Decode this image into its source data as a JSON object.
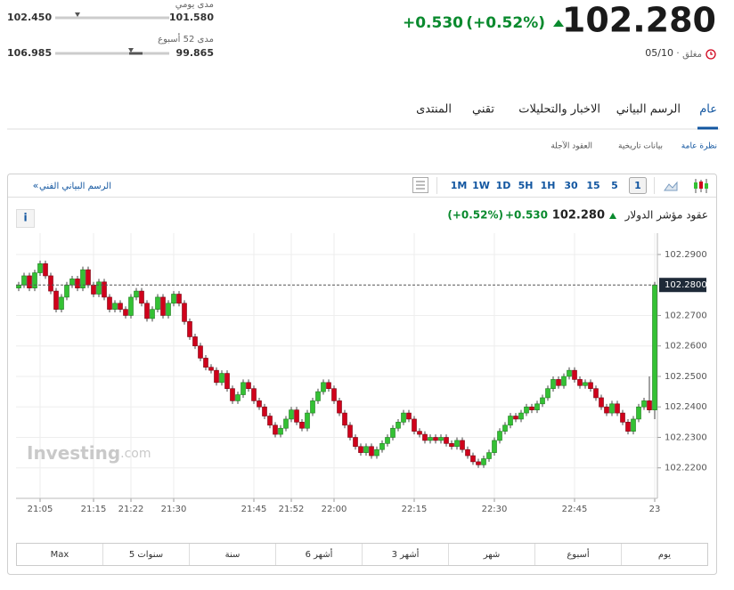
{
  "header": {
    "price": "102.280",
    "change": "+0.530",
    "change_pct": "(+0.52%)",
    "status": "مغلق",
    "date": "05/10",
    "daily_range": {
      "label": "مدى يومي",
      "left": "102.450",
      "right": "101.580"
    },
    "week52_range": {
      "label": "مدى 52 أسبوع",
      "left": "106.985",
      "right": "99.865"
    }
  },
  "tabs": [
    "عام",
    "الرسم البياني",
    "الاخبار والتحليلات",
    "تقني",
    "المنتدى"
  ],
  "subtabs": [
    "نظرة عامة",
    "بيانات تاريخية",
    "العقود الآجلة"
  ],
  "toolbar": {
    "link": "الرسم البياني الفني",
    "link_icon": "«",
    "intervals": [
      "1M",
      "1W",
      "1D",
      "5H",
      "1H",
      "30",
      "15",
      "5",
      "1"
    ]
  },
  "chart_header": {
    "name": "عقود مؤشر الدولار",
    "price": "102.280",
    "change": "+0.530",
    "change_pct": "(+0.52%)",
    "info": "i"
  },
  "watermark": {
    "brand": "Investing",
    "suffix": ".com"
  },
  "ranges": [
    "Max",
    "5 سنوات",
    "سنة",
    "6 أشهر",
    "3 أشهر",
    "شهر",
    "أسبوع",
    "يوم"
  ],
  "chart_data": {
    "type": "candlestick",
    "up_color": "#34c134",
    "down_color": "#d0021b",
    "grid": true,
    "ylim": [
      102.21,
      102.297
    ],
    "yticks": [
      {
        "value": 102.22,
        "label": "102.2200"
      },
      {
        "value": 102.23,
        "label": "102.2300"
      },
      {
        "value": 102.24,
        "label": "102.2400"
      },
      {
        "value": 102.25,
        "label": "102.2500"
      },
      {
        "value": 102.26,
        "label": "102.2600"
      },
      {
        "value": 102.27,
        "label": "102.2700"
      },
      {
        "value": 102.29,
        "label": "102.2900"
      }
    ],
    "last_price": {
      "value": 102.28,
      "label": "102.2800"
    },
    "categories": [
      null,
      null,
      null,
      null,
      "21:05",
      null,
      null,
      null,
      null,
      null,
      null,
      null,
      null,
      null,
      "21:15",
      null,
      null,
      null,
      null,
      null,
      null,
      "21:22",
      null,
      null,
      null,
      null,
      null,
      null,
      null,
      "21:30",
      null,
      null,
      null,
      null,
      null,
      null,
      null,
      null,
      null,
      null,
      null,
      null,
      null,
      null,
      "21:45",
      null,
      null,
      null,
      null,
      null,
      null,
      "21:52",
      null,
      null,
      null,
      null,
      null,
      null,
      null,
      "22:00",
      null,
      null,
      null,
      null,
      null,
      null,
      null,
      null,
      null,
      null,
      null,
      null,
      null,
      null,
      "22:15",
      null,
      null,
      null,
      null,
      null,
      null,
      null,
      null,
      null,
      null,
      null,
      null,
      null,
      null,
      "22:30",
      null,
      null,
      null,
      null,
      null,
      null,
      null,
      null,
      null,
      null,
      null,
      null,
      null,
      null,
      "22:45",
      null,
      null,
      null,
      null,
      null,
      null,
      null,
      null,
      null,
      null,
      null,
      null,
      null,
      null,
      "23"
    ],
    "open": [
      102.279,
      102.28,
      102.283,
      102.279,
      102.284,
      102.287,
      102.283,
      102.278,
      102.272,
      102.276,
      102.28,
      102.282,
      102.279,
      102.285,
      102.28,
      102.277,
      102.281,
      102.276,
      102.272,
      102.274,
      102.272,
      102.27,
      102.276,
      102.278,
      102.274,
      102.269,
      102.272,
      102.276,
      102.27,
      102.274,
      102.277,
      102.274,
      102.268,
      102.263,
      102.26,
      102.256,
      102.253,
      102.252,
      102.248,
      102.251,
      102.246,
      102.242,
      102.244,
      102.248,
      102.246,
      102.242,
      102.24,
      102.237,
      102.234,
      102.231,
      102.233,
      102.236,
      102.239,
      102.235,
      102.233,
      102.238,
      102.242,
      102.245,
      102.248,
      102.246,
      102.242,
      102.238,
      102.234,
      102.23,
      102.227,
      102.225,
      102.227,
      102.224,
      102.226,
      102.228,
      102.23,
      102.233,
      102.235,
      102.238,
      102.236,
      102.232,
      102.231,
      102.229,
      102.23,
      102.229,
      102.23,
      102.228,
      102.227,
      102.229,
      102.226,
      102.224,
      102.222,
      102.221,
      102.223,
      102.225,
      102.229,
      102.232,
      102.234,
      102.237,
      102.236,
      102.238,
      102.24,
      102.239,
      102.241,
      102.243,
      102.246,
      102.249,
      102.247,
      102.25,
      102.252,
      102.249,
      102.247,
      102.248,
      102.246,
      102.243,
      102.24,
      102.238,
      102.241,
      102.238,
      102.235,
      102.232,
      102.236,
      102.24,
      102.242,
      102.239
    ],
    "high": [
      102.281,
      102.284,
      102.284,
      102.285,
      102.288,
      102.288,
      102.284,
      102.279,
      102.277,
      102.281,
      102.283,
      102.283,
      102.286,
      102.286,
      102.281,
      102.282,
      102.282,
      102.277,
      102.275,
      102.275,
      102.273,
      102.277,
      102.279,
      102.279,
      102.275,
      102.273,
      102.277,
      102.277,
      102.275,
      102.278,
      102.278,
      102.275,
      102.269,
      102.264,
      102.261,
      102.257,
      102.254,
      102.253,
      102.252,
      102.252,
      102.247,
      102.245,
      102.249,
      102.249,
      102.247,
      102.243,
      102.241,
      102.238,
      102.235,
      102.234,
      102.237,
      102.24,
      102.24,
      102.236,
      102.239,
      102.243,
      102.246,
      102.249,
      102.249,
      102.247,
      102.243,
      102.239,
      102.235,
      102.231,
      102.228,
      102.228,
      102.228,
      102.227,
      102.229,
      102.231,
      102.234,
      102.236,
      102.239,
      102.239,
      102.237,
      102.233,
      102.232,
      102.231,
      102.231,
      102.231,
      102.231,
      102.229,
      102.23,
      102.23,
      102.227,
      102.225,
      102.223,
      102.224,
      102.226,
      102.23,
      102.233,
      102.235,
      102.238,
      102.238,
      102.239,
      102.241,
      102.241,
      102.242,
      102.244,
      102.247,
      102.25,
      102.25,
      102.251,
      102.253,
      102.253,
      102.25,
      102.249,
      102.249,
      102.247,
      102.244,
      102.241,
      102.242,
      102.242,
      102.239,
      102.236,
      102.237,
      102.241,
      102.243,
      102.25,
      102.281
    ],
    "low": [
      102.278,
      102.279,
      102.278,
      102.278,
      102.283,
      102.282,
      102.277,
      102.271,
      102.271,
      102.275,
      102.279,
      102.278,
      102.278,
      102.279,
      102.276,
      102.276,
      102.275,
      102.271,
      102.271,
      102.271,
      102.269,
      102.269,
      102.275,
      102.273,
      102.268,
      102.268,
      102.271,
      102.269,
      102.269,
      102.273,
      102.273,
      102.267,
      102.262,
      102.259,
      102.255,
      102.252,
      102.251,
      102.247,
      102.247,
      102.245,
      102.241,
      102.241,
      102.243,
      102.245,
      102.241,
      102.239,
      102.236,
      102.233,
      102.23,
      102.23,
      102.232,
      102.235,
      102.234,
      102.232,
      102.232,
      102.237,
      102.241,
      102.244,
      102.245,
      102.241,
      102.237,
      102.233,
      102.229,
      102.226,
      102.224,
      102.224,
      102.223,
      102.223,
      102.225,
      102.227,
      102.229,
      102.232,
      102.234,
      102.235,
      102.231,
      102.23,
      102.228,
      102.228,
      102.228,
      102.228,
      102.227,
      102.226,
      102.226,
      102.225,
      102.223,
      102.221,
      102.22,
      102.22,
      102.222,
      102.224,
      102.228,
      102.231,
      102.233,
      102.235,
      102.235,
      102.237,
      102.238,
      102.238,
      102.24,
      102.242,
      102.245,
      102.246,
      102.246,
      102.249,
      102.248,
      102.246,
      102.246,
      102.245,
      102.242,
      102.239,
      102.237,
      102.237,
      102.237,
      102.234,
      102.231,
      102.231,
      102.235,
      102.239,
      102.238,
      102.236
    ],
    "close": [
      102.28,
      102.283,
      102.279,
      102.284,
      102.287,
      102.283,
      102.278,
      102.272,
      102.276,
      102.28,
      102.282,
      102.279,
      102.285,
      102.28,
      102.277,
      102.281,
      102.276,
      102.272,
      102.274,
      102.272,
      102.27,
      102.276,
      102.278,
      102.274,
      102.269,
      102.272,
      102.276,
      102.27,
      102.274,
      102.277,
      102.274,
      102.268,
      102.263,
      102.26,
      102.256,
      102.253,
      102.252,
      102.248,
      102.251,
      102.246,
      102.242,
      102.244,
      102.248,
      102.246,
      102.242,
      102.24,
      102.237,
      102.234,
      102.231,
      102.233,
      102.236,
      102.239,
      102.235,
      102.233,
      102.238,
      102.242,
      102.245,
      102.248,
      102.246,
      102.242,
      102.238,
      102.234,
      102.23,
      102.227,
      102.225,
      102.227,
      102.224,
      102.226,
      102.228,
      102.23,
      102.233,
      102.235,
      102.238,
      102.236,
      102.232,
      102.231,
      102.229,
      102.23,
      102.229,
      102.23,
      102.228,
      102.227,
      102.229,
      102.226,
      102.224,
      102.222,
      102.221,
      102.223,
      102.225,
      102.229,
      102.232,
      102.234,
      102.237,
      102.236,
      102.238,
      102.24,
      102.239,
      102.241,
      102.243,
      102.246,
      102.249,
      102.247,
      102.25,
      102.252,
      102.249,
      102.247,
      102.248,
      102.246,
      102.243,
      102.24,
      102.238,
      102.241,
      102.238,
      102.235,
      102.232,
      102.236,
      102.24,
      102.242,
      102.239,
      102.28
    ]
  }
}
